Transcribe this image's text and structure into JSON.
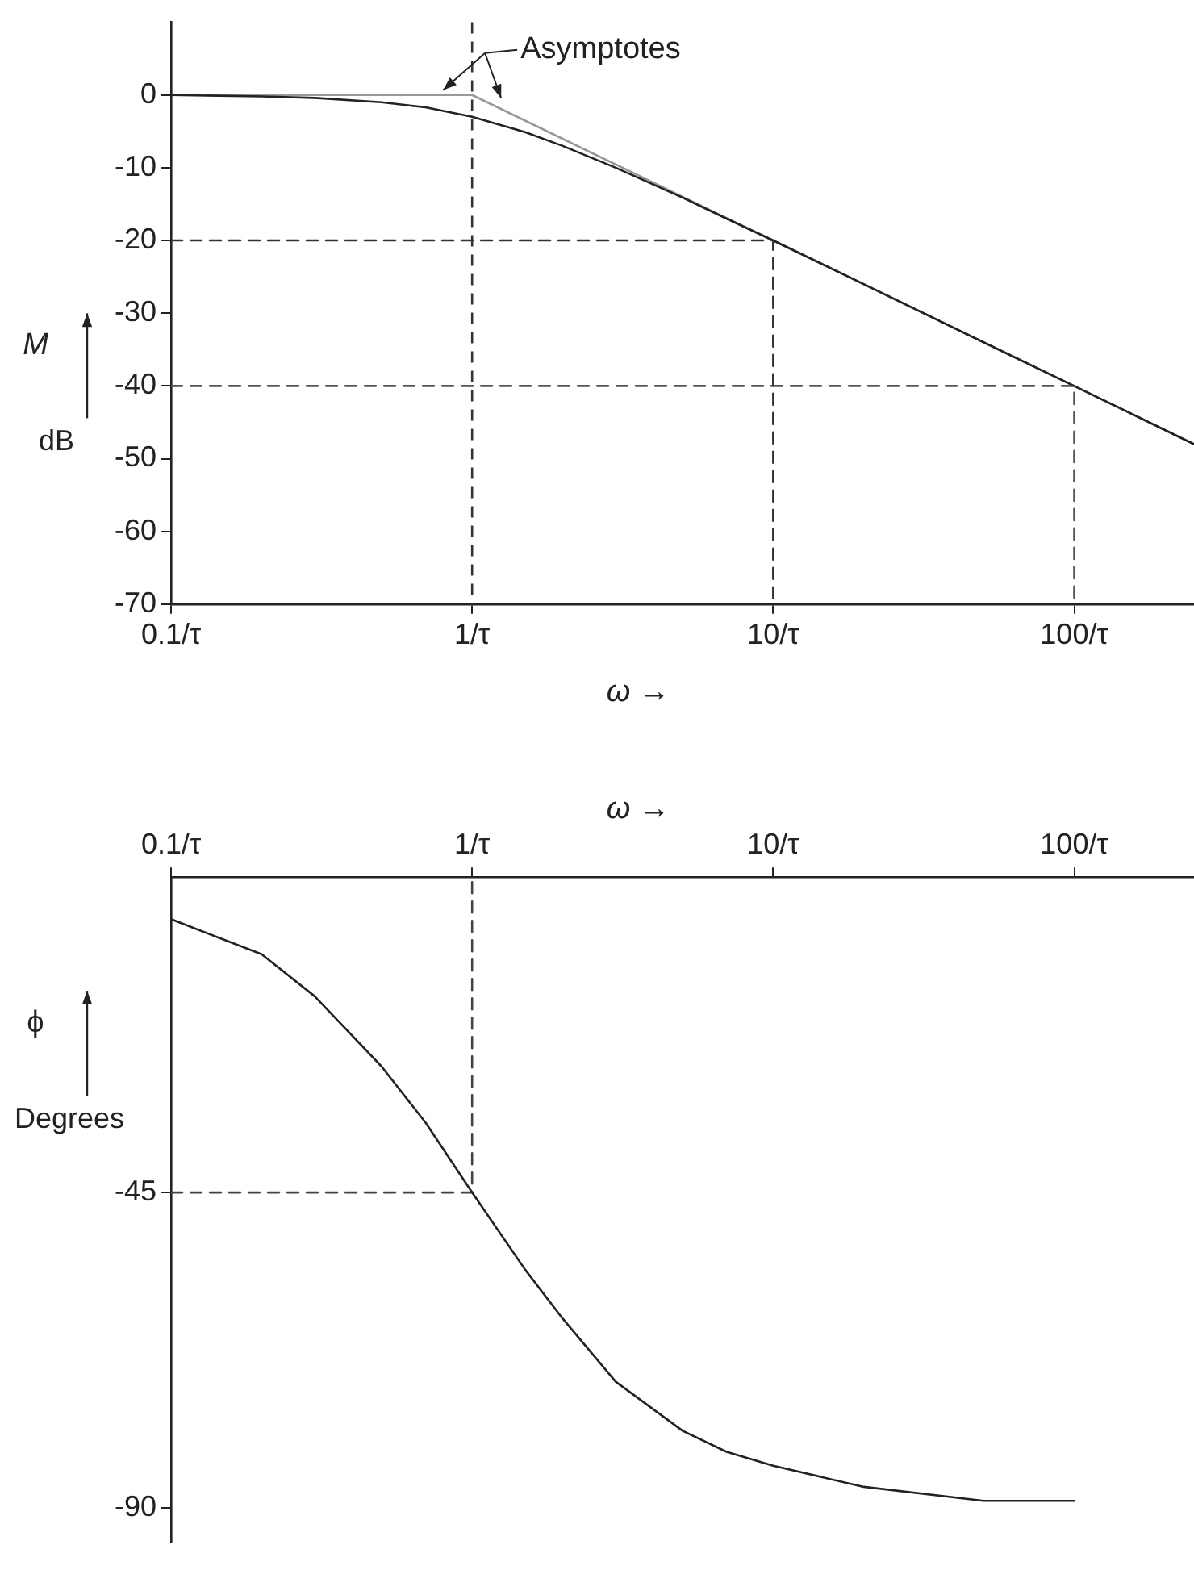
{
  "chart_data": [
    {
      "type": "line",
      "xlabel": "ω →",
      "ylabel": "M dB",
      "log": "x",
      "grid": false,
      "legend": false,
      "marker": "none",
      "xlim": [
        0.1,
        250
      ],
      "xticks": [
        {
          "value": 0.1,
          "label": "0.1/τ"
        },
        {
          "value": 1,
          "label": "1/τ"
        },
        {
          "value": 10,
          "label": "10/τ"
        },
        {
          "value": 100,
          "label": "100/τ"
        }
      ],
      "ylim": [
        -70,
        10
      ],
      "yticks": [
        0,
        -10,
        -20,
        -30,
        -40,
        -50,
        -60,
        -70
      ],
      "annotations": [
        {
          "text": "Asymptotes",
          "x": 1,
          "y": 0
        }
      ],
      "series": [
        {
          "color": "#222222",
          "line_style": "solid",
          "x": [
            0.1,
            0.2,
            0.3,
            0.5,
            0.7,
            1,
            1.5,
            2,
            3,
            5,
            7,
            10,
            20,
            50,
            100,
            250
          ],
          "values": [
            0,
            -0.2,
            -0.4,
            -1,
            -1.7,
            -3,
            -5.1,
            -7,
            -10,
            -14.1,
            -17,
            -20,
            -26,
            -34,
            -40,
            -48
          ]
        },
        {
          "color": "#999999",
          "line_style": "solid",
          "x": [
            0.1,
            1,
            250
          ],
          "values": [
            0,
            0,
            -48
          ]
        },
        {
          "color": "#333333",
          "line_style": "dashed",
          "x": [
            0.1,
            10,
            10
          ],
          "values": [
            -20,
            -20,
            -70
          ]
        },
        {
          "color": "#555555",
          "line_style": "dashed",
          "x": [
            0.1,
            100,
            100
          ],
          "values": [
            -40,
            -40,
            -70
          ]
        }
      ],
      "ref_lines": [
        {
          "axis": "x",
          "value": 1,
          "color": "#333333",
          "line_style": "dashed"
        }
      ]
    },
    {
      "type": "line",
      "xlabel": "ω →",
      "ylabel": "ϕ Degrees",
      "log": "x",
      "grid": false,
      "legend": false,
      "marker": "none",
      "xlim": [
        0.1,
        250
      ],
      "xticks": [
        {
          "value": 0.1,
          "label": "0.1/τ"
        },
        {
          "value": 1,
          "label": "1/τ"
        },
        {
          "value": 10,
          "label": "10/τ"
        },
        {
          "value": 100,
          "label": "100/τ"
        }
      ],
      "ylim": [
        -95,
        0
      ],
      "yticks": [
        -45,
        -90
      ],
      "series": [
        {
          "color": "#222222",
          "line_style": "solid",
          "x": [
            0.1,
            0.2,
            0.3,
            0.5,
            0.7,
            1,
            1.5,
            2,
            3,
            5,
            7,
            10,
            20,
            50,
            100
          ],
          "values": [
            -6,
            -11,
            -17,
            -27,
            -35,
            -45,
            -56,
            -63,
            -72,
            -79,
            -82,
            -84,
            -87,
            -89,
            -89
          ]
        },
        {
          "color": "#444444",
          "line_style": "dashed",
          "x": [
            0.1,
            1,
            1
          ],
          "values": [
            -45,
            -45,
            0
          ]
        }
      ]
    }
  ]
}
